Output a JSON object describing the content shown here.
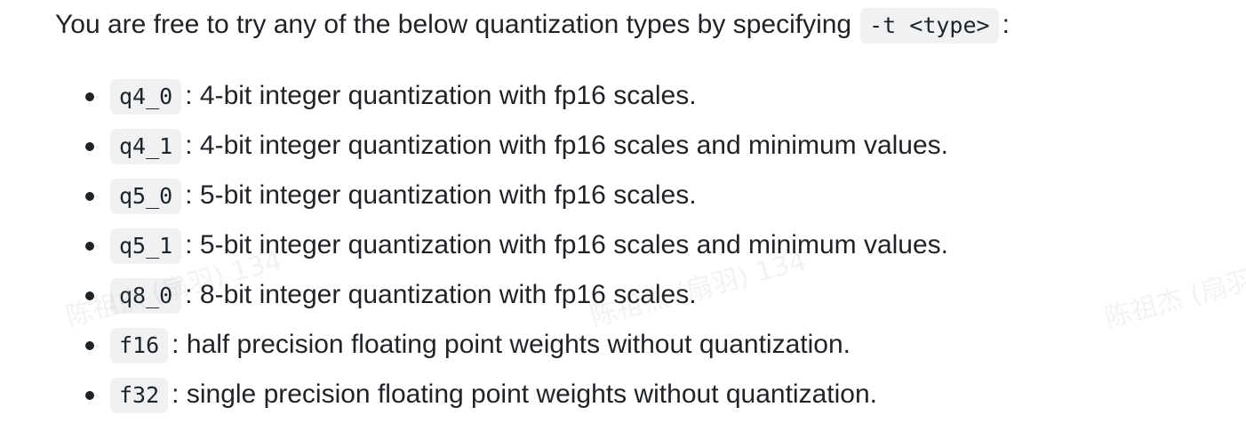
{
  "intro": {
    "text": "You are free to try any of the below quantization types by specifying",
    "code": "-t <type>",
    "trailing": ":"
  },
  "items": [
    {
      "code": "q4_0",
      "separator": ":",
      "text": "4-bit integer quantization with fp16 scales."
    },
    {
      "code": "q4_1",
      "separator": ":",
      "text": "4-bit integer quantization with fp16 scales and minimum values."
    },
    {
      "code": "q5_0",
      "separator": ":",
      "text": "5-bit integer quantization with fp16 scales."
    },
    {
      "code": "q5_1",
      "separator": ":",
      "text": "5-bit integer quantization with fp16 scales and minimum values."
    },
    {
      "code": "q8_0",
      "separator": ":",
      "text": "8-bit integer quantization with fp16 scales."
    },
    {
      "code": "f16",
      "separator": ":",
      "text": "half precision floating point weights without quantization."
    },
    {
      "code": "f32",
      "separator": ":",
      "text": "single precision floating point weights without quantization."
    }
  ],
  "watermark": {
    "text": "陈祖杰 (扇羽) 134",
    "text_short": "陈祖杰 (扇羽)"
  },
  "colors": {
    "text": "#1f2328",
    "code_background": "#eff1f3",
    "background": "#ffffff"
  }
}
